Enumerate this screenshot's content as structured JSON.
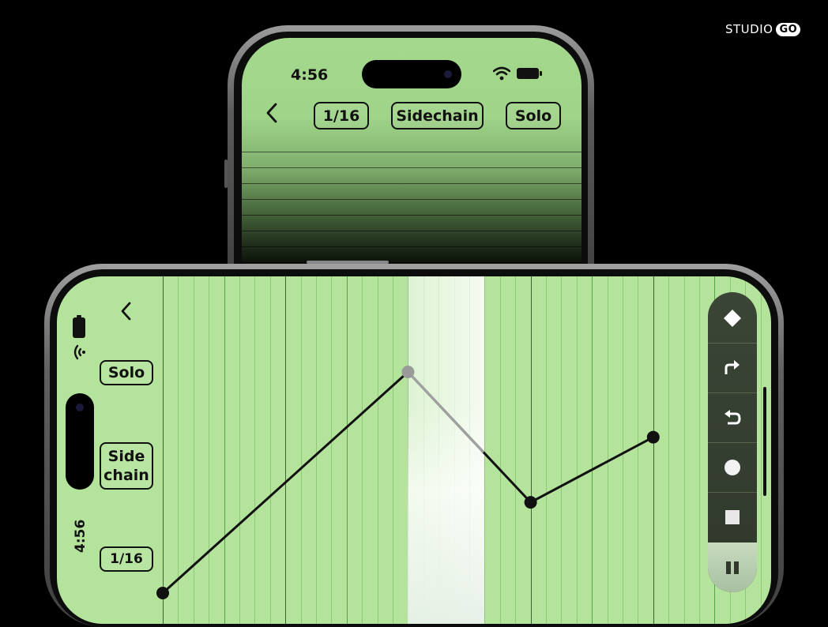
{
  "brand": {
    "studio": "STUDIO",
    "go": "GO"
  },
  "portrait": {
    "status": {
      "time": "4:56"
    },
    "toolbar": {
      "grid_label": "1/16",
      "sidechain_label": "Sidechain",
      "solo_label": "Solo"
    }
  },
  "landscape": {
    "status": {
      "time": "4:56"
    },
    "buttons": {
      "solo_label": "Solo",
      "sidechain_line1": "Side",
      "sidechain_line2": "chain",
      "grid_label": "1/16"
    },
    "tools": [
      "diamond-icon",
      "redo-icon",
      "undo-icon",
      "record-icon",
      "stop-icon",
      "pause-icon"
    ],
    "automation": {
      "points": [
        {
          "step": 0,
          "value": 0.0
        },
        {
          "step": 16,
          "value": 0.78
        },
        {
          "step": 24,
          "value": 0.32
        },
        {
          "step": 32,
          "value": 0.55
        }
      ]
    }
  },
  "colors": {
    "screen_green": "#b4e49c",
    "accent_line": "#111111",
    "toolbar_bg": "#343e30"
  }
}
